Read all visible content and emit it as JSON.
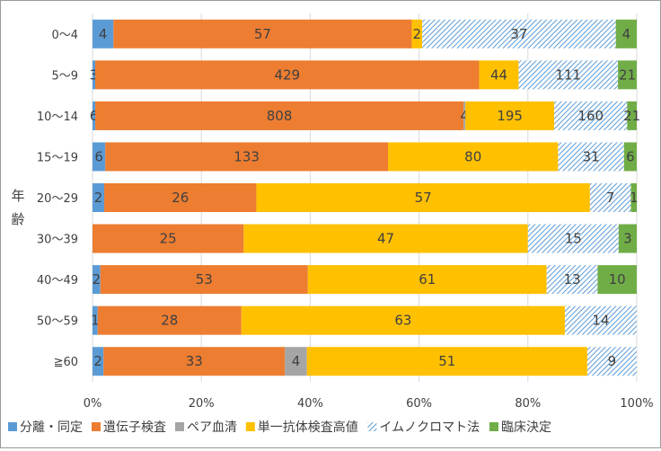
{
  "chart_data": {
    "type": "bar",
    "orientation": "horizontal",
    "stacked": "percent",
    "ylabel": "年齢",
    "categories": [
      "0〜4",
      "5〜9",
      "10〜14",
      "15〜19",
      "20〜29",
      "30〜39",
      "40〜49",
      "50〜59",
      "≧60"
    ],
    "x_ticks": [
      "0%",
      "20%",
      "40%",
      "60%",
      "80%",
      "100%"
    ],
    "xlim": [
      0,
      100
    ],
    "grid": true,
    "legend_position": "bottom",
    "series": [
      {
        "name": "分離・同定",
        "color": "#5b9bd5",
        "pattern": "solid",
        "values": [
          4,
          3,
          6,
          6,
          2,
          0,
          2,
          1,
          2
        ]
      },
      {
        "name": "遺伝子検査",
        "color": "#ed7d31",
        "pattern": "solid",
        "values": [
          57,
          429,
          808,
          133,
          26,
          25,
          53,
          28,
          33
        ]
      },
      {
        "name": "ペア血清",
        "color": "#a5a5a5",
        "pattern": "solid",
        "values": [
          0,
          0,
          4,
          0,
          0,
          0,
          0,
          0,
          4
        ]
      },
      {
        "name": "単一抗体検査高値",
        "color": "#ffc000",
        "pattern": "solid",
        "values": [
          2,
          44,
          195,
          80,
          57,
          47,
          61,
          63,
          51
        ]
      },
      {
        "name": "イムノクロマト法",
        "color": "#5b9bd5",
        "pattern": "hatch",
        "values": [
          37,
          111,
          160,
          31,
          7,
          15,
          13,
          14,
          9
        ]
      },
      {
        "name": "臨床決定",
        "color": "#70ad47",
        "pattern": "solid",
        "values": [
          4,
          21,
          21,
          6,
          1,
          3,
          10,
          0,
          0
        ]
      }
    ]
  }
}
